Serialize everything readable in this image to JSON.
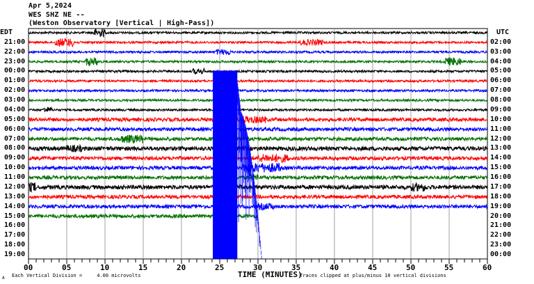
{
  "header": {
    "date": "Apr 5,2024",
    "station": "WES SHZ NE --",
    "observatory": "(Weston Observatory [Vertical | High-Pass])"
  },
  "left_axis_label": "EDT",
  "right_axis_label": "UTC",
  "footer": {
    "scale_text": "Each Vertical Division =     4.00 microvolts",
    "xlabel": "TIME (MINUTES)",
    "clip_note": "Traces clipped at plus/minus 10 vertical divisions",
    "corner_mark": "A"
  },
  "colors": {
    "black": "#000000",
    "red": "#ff0000",
    "blue": "#0000ff",
    "green": "#007000",
    "grid": "#a0a0a0"
  },
  "chart_data": {
    "type": "seismogram",
    "title": "Apr 5,2024 WES SHZ NE -- (Weston Observatory [Vertical | High-Pass])",
    "xlabel": "TIME (MINUTES)",
    "ylabel_left": "EDT",
    "ylabel_right": "UTC",
    "xlim": [
      0,
      60
    ],
    "x_ticks": [
      "00",
      "05",
      "10",
      "15",
      "20",
      "25",
      "30",
      "35",
      "40",
      "45",
      "50",
      "55",
      "60"
    ],
    "grid": true,
    "scale_microvolts_per_division": 4.0,
    "clip_divisions": 10,
    "rows": [
      {
        "edt": "",
        "utc": "",
        "color": "black",
        "has_data": true,
        "bursts": [
          [
            8.5,
            10,
            2.5
          ]
        ]
      },
      {
        "edt": "21:00",
        "utc": "02:00",
        "color": "red",
        "has_data": true,
        "bursts": [
          [
            3.5,
            6,
            2.5
          ],
          [
            35.5,
            38.5,
            1.5
          ]
        ]
      },
      {
        "edt": "22:00",
        "utc": "03:00",
        "color": "blue",
        "has_data": true,
        "bursts": [
          [
            24.5,
            26.5,
            1.5
          ]
        ]
      },
      {
        "edt": "23:00",
        "utc": "04:00",
        "color": "green",
        "has_data": true,
        "bursts": [
          [
            7.5,
            9,
            2.5
          ],
          [
            54.5,
            56.5,
            2.5
          ]
        ]
      },
      {
        "edt": "00:00",
        "utc": "05:00",
        "color": "black",
        "has_data": true,
        "bursts": [
          [
            21.5,
            23,
            1.5
          ]
        ]
      },
      {
        "edt": "01:00",
        "utc": "06:00",
        "color": "red",
        "has_data": true,
        "bursts": []
      },
      {
        "edt": "02:00",
        "utc": "07:00",
        "color": "blue",
        "has_data": true,
        "bursts": []
      },
      {
        "edt": "03:00",
        "utc": "08:00",
        "color": "green",
        "has_data": true,
        "bursts": []
      },
      {
        "edt": "04:00",
        "utc": "09:00",
        "color": "black",
        "has_data": true,
        "bursts": [
          [
            2,
            3,
            1.5
          ]
        ]
      },
      {
        "edt": "05:00",
        "utc": "10:00",
        "color": "red",
        "has_data": true,
        "bursts": [
          [
            28,
            31,
            2
          ]
        ]
      },
      {
        "edt": "06:00",
        "utc": "11:00",
        "color": "blue",
        "has_data": true,
        "bursts": []
      },
      {
        "edt": "07:00",
        "utc": "12:00",
        "color": "green",
        "has_data": true,
        "bursts": [
          [
            12,
            15,
            2.5
          ]
        ]
      },
      {
        "edt": "08:00",
        "utc": "13:00",
        "color": "black",
        "has_data": true,
        "bursts": [
          [
            5,
            7,
            2
          ]
        ]
      },
      {
        "edt": "09:00",
        "utc": "14:00",
        "color": "red",
        "has_data": true,
        "bursts": [
          [
            30,
            34,
            2.5
          ]
        ]
      },
      {
        "edt": "10:00",
        "utc": "15:00",
        "color": "blue",
        "has_data": true,
        "bursts": [
          [
            28,
            33,
            3
          ]
        ]
      },
      {
        "edt": "11:00",
        "utc": "16:00",
        "color": "green",
        "has_data": true,
        "bursts": [
          [
            29,
            30,
            2
          ]
        ]
      },
      {
        "edt": "12:00",
        "utc": "17:00",
        "color": "black",
        "has_data": true,
        "bursts": [
          [
            0,
            1,
            3
          ],
          [
            50,
            52,
            2.5
          ]
        ]
      },
      {
        "edt": "13:00",
        "utc": "18:00",
        "color": "red",
        "has_data": true,
        "bursts": []
      },
      {
        "edt": "14:00",
        "utc": "19:00",
        "color": "blue",
        "has_data": true,
        "bursts": [
          [
            30,
            32,
            2
          ]
        ]
      },
      {
        "edt": "15:00",
        "utc": "20:00",
        "color": "green",
        "has_data": true,
        "end_minute": 30,
        "bursts": []
      },
      {
        "edt": "16:00",
        "utc": "21:00",
        "color": "black",
        "has_data": false
      },
      {
        "edt": "17:00",
        "utc": "22:00",
        "color": "red",
        "has_data": false
      },
      {
        "edt": "18:00",
        "utc": "23:00",
        "color": "blue",
        "has_data": false
      },
      {
        "edt": "19:00",
        "utc": "00:00",
        "color": "green",
        "has_data": false
      }
    ],
    "annotations": [
      {
        "type": "clipped_event",
        "color": "blue",
        "start_minute": 24.1,
        "clipped_until_minute": 27.3,
        "coda_end_minute": 30.5,
        "start_row": 4,
        "end_row": 23
      }
    ]
  }
}
